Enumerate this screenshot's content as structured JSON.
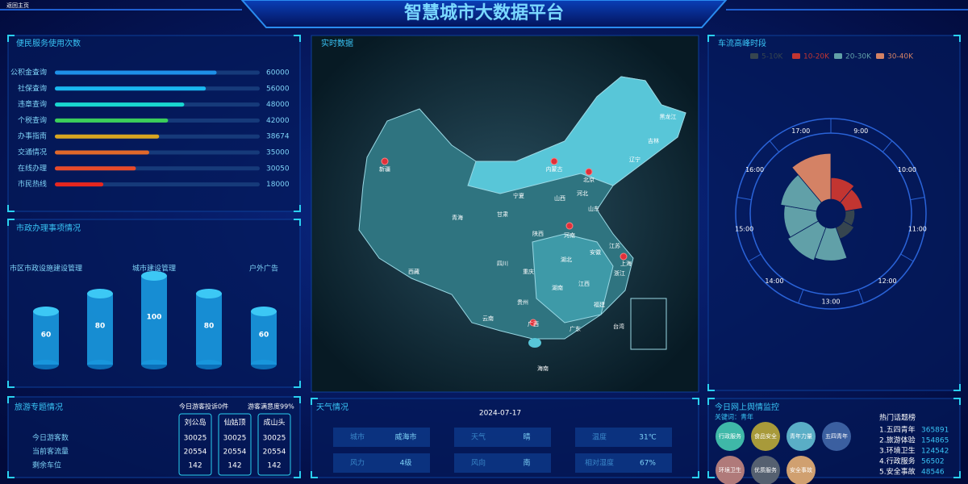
{
  "header": {
    "title": "智慧城市大数据平台",
    "back": "返回主页"
  },
  "chart_data": [
    {
      "type": "hbar",
      "title": "便民服务使用次数",
      "categories": [
        "公积金查询",
        "社保查询",
        "违章查询",
        "个税查询",
        "办事指南",
        "交通情况",
        "在线办理",
        "市民热线"
      ],
      "values": [
        60000,
        56000,
        48000,
        42000,
        38674,
        35000,
        30050,
        18000
      ],
      "colors": [
        "#1e90e8",
        "#19b8f0",
        "#19d6d0",
        "#3ccf5a",
        "#d8a520",
        "#e0682a",
        "#e84a2a",
        "#e8261e"
      ],
      "xlim": [
        0,
        76000
      ]
    },
    {
      "type": "cylinder",
      "title": "市政办理事项情况",
      "categories": [
        "市区市政设施建设管理",
        null,
        "城市建设管理",
        null,
        "户外广告"
      ],
      "values": [
        60,
        80,
        100,
        80,
        60
      ],
      "color": "#1a9ae0",
      "ylim": [
        0,
        100
      ]
    },
    {
      "type": "rose",
      "title": "车流高峰时段",
      "categories": [
        "9:00",
        "10:00",
        "11:00",
        "12:00",
        "13:00",
        "14:00",
        "15:00",
        "16:00",
        "17:00"
      ],
      "values": [
        16,
        13,
        7,
        9,
        24,
        26,
        24,
        27,
        34
      ],
      "colors": [
        "#c23531",
        "#c23531",
        "#36454f",
        "#36454f",
        "#61a0a8",
        "#61a0a8",
        "#61a0a8",
        "#61a0a8",
        "#d48265"
      ],
      "legend": [
        {
          "name": "5-10K",
          "color": "#36454f"
        },
        {
          "name": "10-20K",
          "color": "#c23531"
        },
        {
          "name": "20-30K",
          "color": "#61a0a8"
        },
        {
          "name": "30-40K",
          "color": "#d48265"
        }
      ],
      "rlim": [
        0,
        40
      ]
    }
  ],
  "map": {
    "title": "实时数据",
    "labels": [
      "新疆",
      "西藏",
      "青海",
      "甘肃",
      "宁夏",
      "内蒙古",
      "黑龙江",
      "吉林",
      "辽宁",
      "北京",
      "河北",
      "山西",
      "山东",
      "陕西",
      "河南",
      "江苏",
      "安徽",
      "上海",
      "湖北",
      "四川",
      "重庆",
      "浙江",
      "湖南",
      "江西",
      "贵州",
      "福建",
      "云南",
      "广西",
      "广东",
      "台湾",
      "海南"
    ]
  },
  "tourism": {
    "title": "旅游专题情况",
    "complaints": "今日游客投诉0件",
    "satisfaction": "游客满意度99%",
    "columns": [
      "刘公岛",
      "仙姑顶",
      "成山头"
    ],
    "rows": [
      {
        "label": "今日游客数",
        "values": [
          30025,
          30025,
          30025
        ]
      },
      {
        "label": "当前客流量",
        "values": [
          20554,
          20554,
          20554
        ]
      },
      {
        "label": "剩余车位",
        "values": [
          142,
          142,
          142
        ]
      }
    ]
  },
  "weather": {
    "title": "天气情况",
    "date": "2024-07-17",
    "items": [
      {
        "label": "城市",
        "value": "威海市"
      },
      {
        "label": "天气",
        "value": "晴"
      },
      {
        "label": "温度",
        "value": "31℃"
      },
      {
        "label": "风力",
        "value": "4级"
      },
      {
        "label": "风向",
        "value": "南"
      },
      {
        "label": "相对湿度",
        "value": "67%"
      }
    ]
  },
  "sentiment": {
    "title": "今日网上舆情监控",
    "keyword": "关键词：青年",
    "tags": [
      "行政服务",
      "食品安全",
      "青年力量",
      "五四青年",
      "环境卫生",
      "优质服务",
      "安全事故"
    ],
    "hot_title": "热门话题榜",
    "hot": [
      {
        "label": "1.五四青年",
        "value": 365891
      },
      {
        "label": "2.旅游体验",
        "value": 154865
      },
      {
        "label": "3.环境卫生",
        "value": 124542
      },
      {
        "label": "4.行政服务",
        "value": 56502
      },
      {
        "label": "5.安全事故",
        "value": 48546
      }
    ]
  }
}
